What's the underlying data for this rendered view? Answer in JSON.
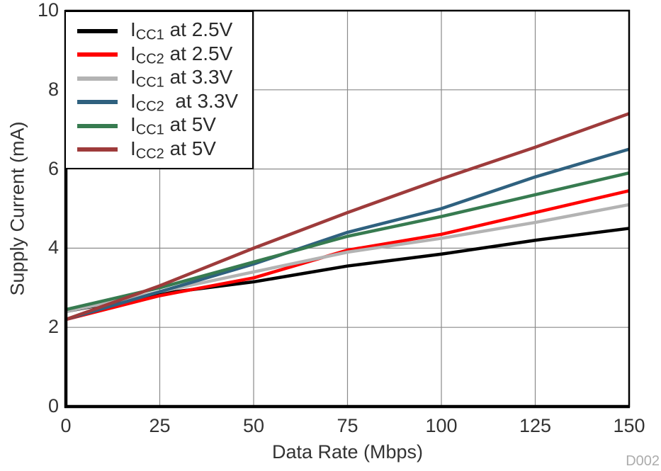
{
  "watermark": "D002",
  "axes": {
    "x": {
      "label": "Data Rate (Mbps)",
      "tick_labels": [
        "0",
        "25",
        "50",
        "75",
        "100",
        "125",
        "150"
      ]
    },
    "y": {
      "label": "Supply Current (mA)",
      "tick_labels": [
        "0",
        "2",
        "4",
        "6",
        "8",
        "10"
      ]
    }
  },
  "chart_data": {
    "type": "line",
    "title": "",
    "xlabel": "Data Rate (Mbps)",
    "ylabel": "Supply Current (mA)",
    "xlim": [
      0,
      150
    ],
    "ylim": [
      0,
      10
    ],
    "x_ticks": [
      0,
      25,
      50,
      75,
      100,
      125,
      150
    ],
    "y_ticks": [
      0,
      2,
      4,
      6,
      8,
      10
    ],
    "grid": true,
    "legend_position": "top-left",
    "x": [
      0,
      25,
      50,
      75,
      100,
      125,
      150
    ],
    "series": [
      {
        "key": "icc1-2v5",
        "name": "ICC1 at 2.5V",
        "label_prefix": "I",
        "label_sub": "CC1",
        "label_rest": " at 2.5V",
        "color": "#000000",
        "values": [
          2.4,
          2.85,
          3.15,
          3.55,
          3.85,
          4.2,
          4.5
        ]
      },
      {
        "key": "icc2-2v5",
        "name": "ICC2 at 2.5V",
        "label_prefix": "I",
        "label_sub": "CC2",
        "label_rest": " at 2.5V",
        "color": "#ff0000",
        "values": [
          2.2,
          2.8,
          3.25,
          3.95,
          4.35,
          4.9,
          5.45
        ]
      },
      {
        "key": "icc1-3v3",
        "name": "ICC1 at 3.3V",
        "label_prefix": "I",
        "label_sub": "CC1",
        "label_rest": " at 3.3V",
        "color": "#b3b3b3",
        "values": [
          2.4,
          2.9,
          3.4,
          3.9,
          4.25,
          4.65,
          5.1
        ]
      },
      {
        "key": "icc2-3v3",
        "name": "ICC2 at 3.3V",
        "label_prefix": "I",
        "label_sub": "CC2",
        "label_rest": "  at 3.3V",
        "color": "#2f617f",
        "values": [
          2.2,
          2.9,
          3.6,
          4.4,
          5.0,
          5.8,
          6.5
        ]
      },
      {
        "key": "icc1-5v",
        "name": "ICC1 at 5V",
        "label_prefix": "I",
        "label_sub": "CC1",
        "label_rest": " at 5V",
        "color": "#377b50",
        "values": [
          2.45,
          3.0,
          3.65,
          4.3,
          4.8,
          5.35,
          5.9
        ]
      },
      {
        "key": "icc2-5v",
        "name": "ICC2 at 5V",
        "label_prefix": "I",
        "label_sub": "CC2",
        "label_rest": " at 5V",
        "color": "#9e3b3b",
        "values": [
          2.2,
          3.05,
          4.0,
          4.9,
          5.75,
          6.55,
          7.4
        ]
      }
    ]
  }
}
